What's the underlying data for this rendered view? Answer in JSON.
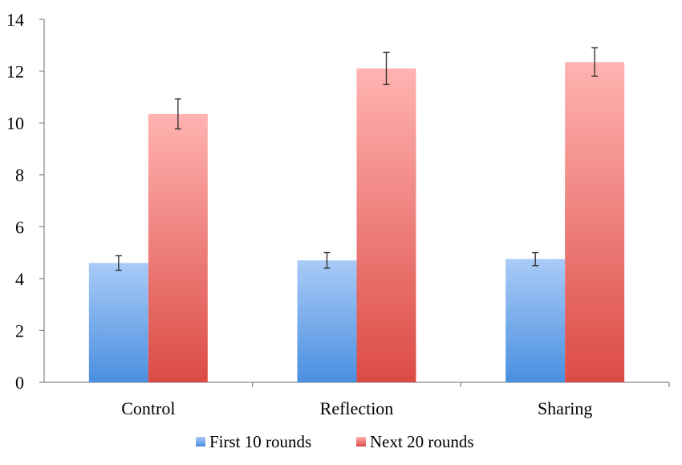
{
  "chart_data": {
    "type": "bar",
    "categories": [
      "Control",
      "Reflection",
      "Sharing"
    ],
    "series": [
      {
        "name": "First 10 rounds",
        "values": [
          4.6,
          4.7,
          4.75
        ],
        "error": [
          0.28,
          0.3,
          0.25
        ],
        "color_top": "#a9cbf7",
        "color_bottom": "#4a8fe0"
      },
      {
        "name": "Next 20 rounds",
        "values": [
          10.35,
          12.1,
          12.35
        ],
        "error": [
          0.58,
          0.62,
          0.55
        ],
        "color_top": "#ffb3b1",
        "color_bottom": "#dc4b45"
      }
    ],
    "ylim": [
      0,
      14
    ],
    "yticks": [
      0,
      2,
      4,
      6,
      8,
      10,
      12,
      14
    ],
    "title": "",
    "xlabel": "",
    "ylabel": "",
    "legend_position": "bottom",
    "grid": false
  }
}
